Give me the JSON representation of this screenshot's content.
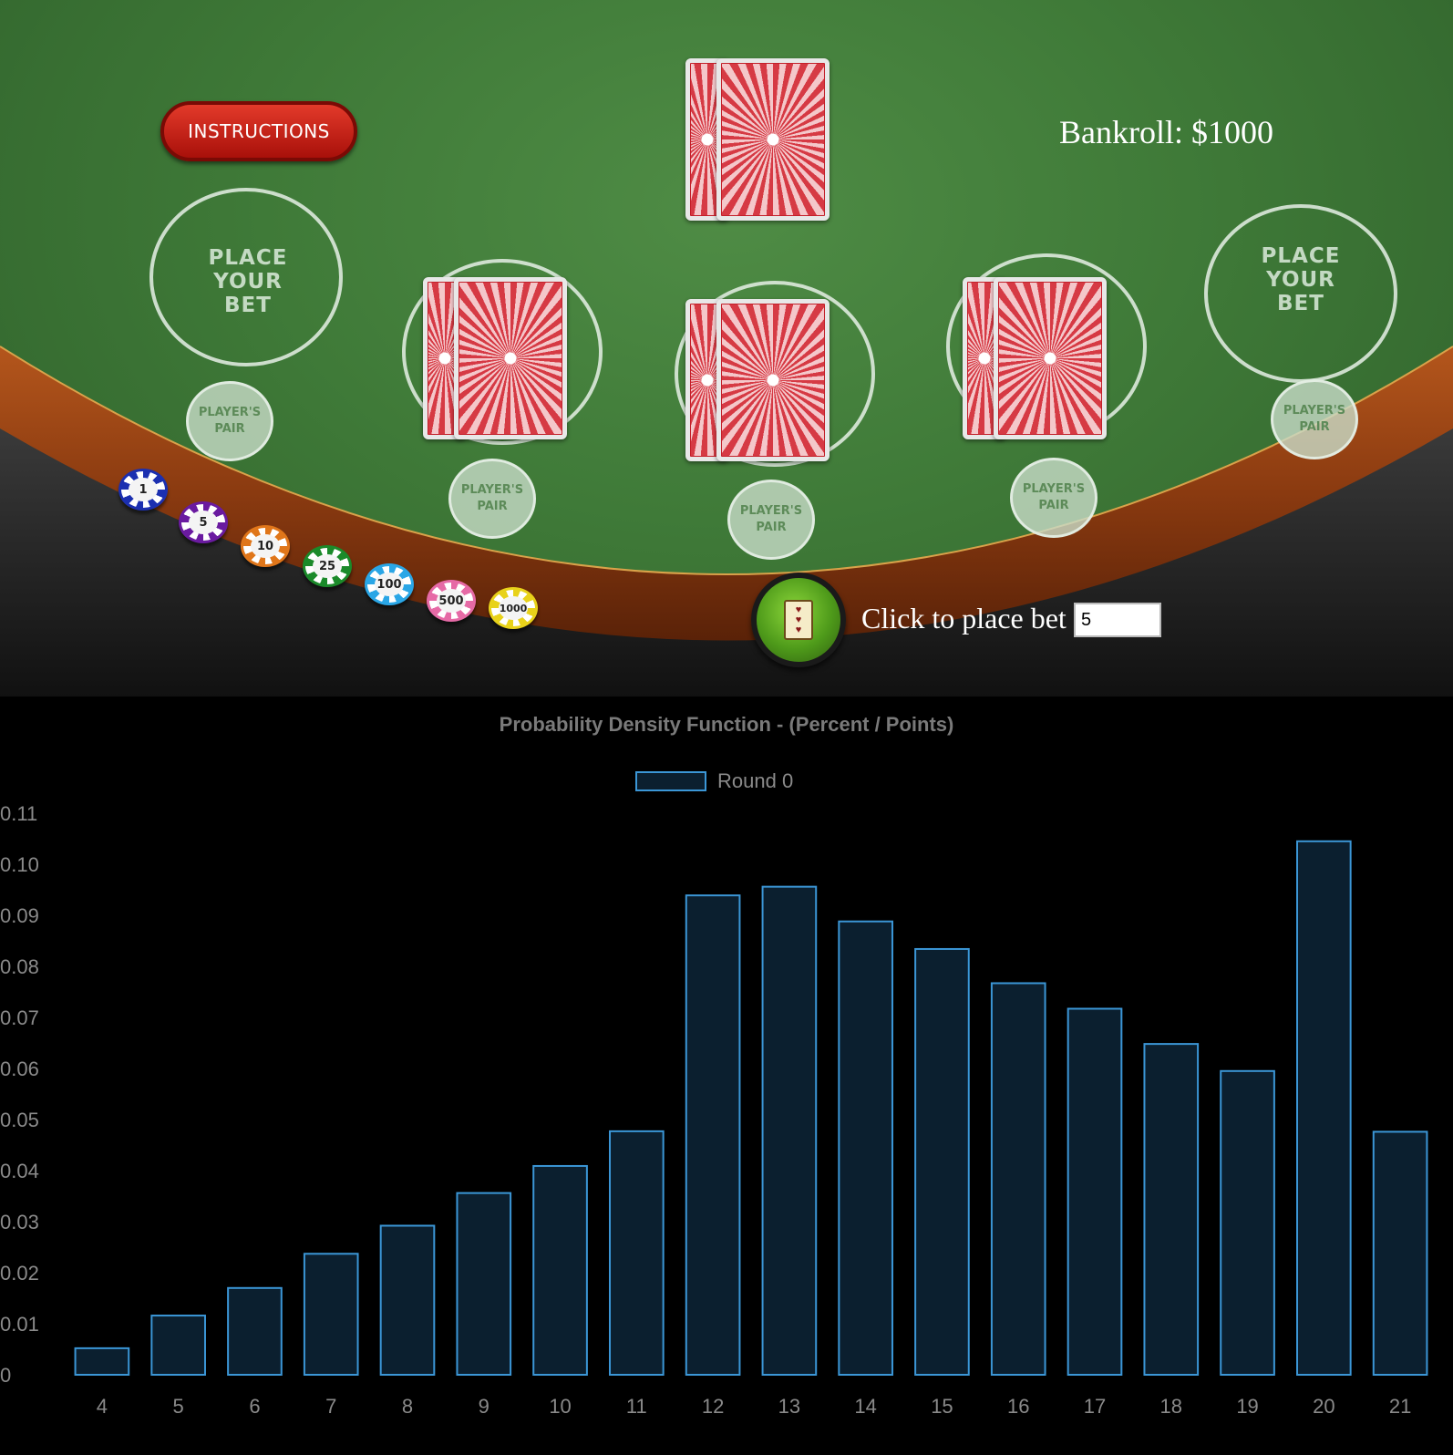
{
  "table": {
    "instructions_label": "INSTRUCTIONS",
    "bankroll_label": "Bankroll: $1000",
    "place_bet_text": [
      "PLACE",
      "YOUR",
      "BET"
    ],
    "players_pair_text": [
      "PLAYER'S",
      "PAIR"
    ],
    "chips": [
      {
        "label": "1",
        "color": "#1b2fb0"
      },
      {
        "label": "5",
        "color": "#6a1aa0"
      },
      {
        "label": "10",
        "color": "#e0761a"
      },
      {
        "label": "25",
        "color": "#1b8a2a"
      },
      {
        "label": "100",
        "color": "#2aa6e6"
      },
      {
        "label": "500",
        "color": "#e66aa6"
      },
      {
        "label": "1000",
        "color": "#e8d21a"
      }
    ],
    "deal_button_icon": "card-deal-icon",
    "bet_prompt": "Click to place bet",
    "bet_value": "5",
    "card_back_color": "#d63a44",
    "felt_color": "#3f7a38"
  },
  "chart_data": {
    "type": "bar",
    "title": "Probability Density Function - (Percent / Points)",
    "categories": [
      "4",
      "5",
      "6",
      "7",
      "8",
      "9",
      "10",
      "11",
      "12",
      "13",
      "14",
      "15",
      "16",
      "17",
      "18",
      "19",
      "20",
      "21"
    ],
    "series": [
      {
        "name": "Round 0",
        "values": [
          0.0052,
          0.0116,
          0.017,
          0.0237,
          0.0292,
          0.0356,
          0.0409,
          0.0477,
          0.0939,
          0.0956,
          0.0888,
          0.0834,
          0.0767,
          0.0717,
          0.0648,
          0.0595,
          0.1045,
          0.0476
        ],
        "fill": "#0b1f2f",
        "stroke": "#3b96d6"
      }
    ],
    "yticks": [
      "0",
      "0.01",
      "0.02",
      "0.03",
      "0.04",
      "0.05",
      "0.06",
      "0.07",
      "0.08",
      "0.09",
      "0.10",
      "0.11"
    ],
    "ylim": [
      0,
      0.11
    ],
    "legend": "top-center",
    "grid": false
  }
}
